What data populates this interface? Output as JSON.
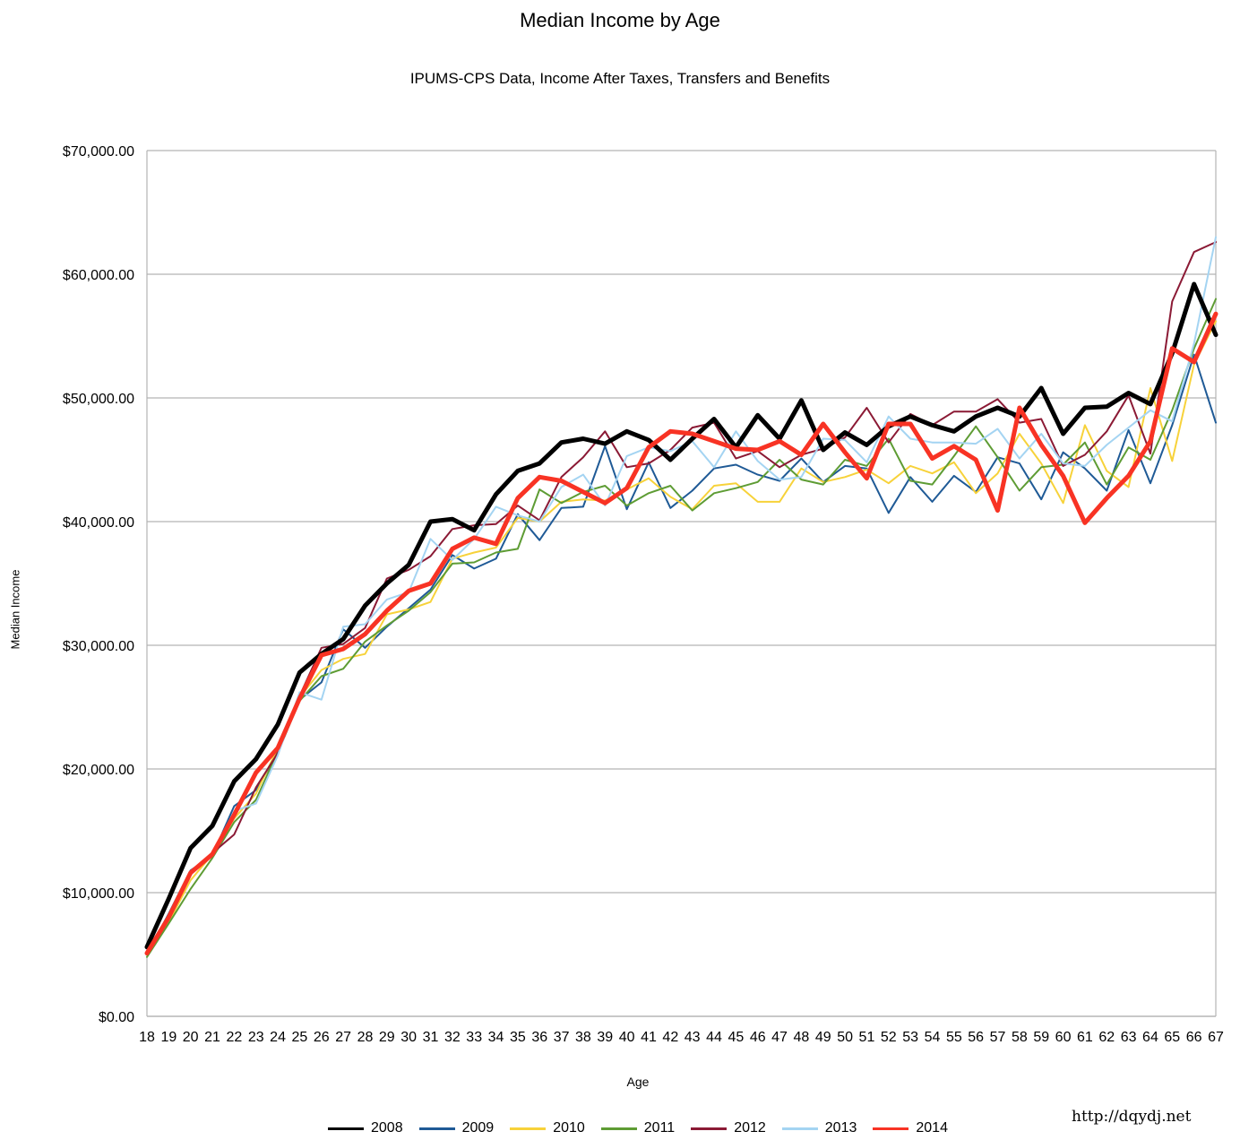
{
  "chart_data": {
    "type": "line",
    "title": "Median Income by Age",
    "subtitle": "IPUMS-CPS Data, Income After Taxes, Transfers and Benefits",
    "xlabel": "Age",
    "ylabel": "Median Income",
    "ylim": [
      0,
      70000
    ],
    "yticks": [
      0,
      10000,
      20000,
      30000,
      40000,
      50000,
      60000,
      70000
    ],
    "ytick_labels": [
      "$0.00",
      "$10,000.00",
      "$20,000.00",
      "$30,000.00",
      "$40,000.00",
      "$50,000.00",
      "$60,000.00",
      "$70,000.00"
    ],
    "grid": true,
    "legend_position": "bottom",
    "x": [
      18,
      19,
      20,
      21,
      22,
      23,
      24,
      25,
      26,
      27,
      28,
      29,
      30,
      31,
      32,
      33,
      34,
      35,
      36,
      37,
      38,
      39,
      40,
      41,
      42,
      43,
      44,
      45,
      46,
      47,
      48,
      49,
      50,
      51,
      52,
      53,
      54,
      55,
      56,
      57,
      58,
      59,
      60,
      61,
      62,
      63,
      64,
      65,
      66,
      67
    ],
    "series": [
      {
        "name": "2008",
        "color": "#000000",
        "width": 5,
        "values": [
          5600,
          9500,
          13600,
          15400,
          19000,
          20800,
          23600,
          27800,
          29300,
          30500,
          33200,
          35000,
          36500,
          40000,
          40200,
          39300,
          42200,
          44100,
          44700,
          46400,
          46700,
          46300,
          47300,
          46600,
          45000,
          46700,
          48300,
          46000,
          48600,
          46700,
          49800,
          45800,
          47200,
          46200,
          47700,
          48500,
          47800,
          47300,
          48500,
          49200,
          48500,
          50800,
          47100,
          49200,
          49300,
          50400,
          49500,
          53600,
          59200,
          55100
        ]
      },
      {
        "name": "2009",
        "color": "#1f5a96",
        "width": 2,
        "values": [
          5000,
          8300,
          11800,
          13000,
          17000,
          18300,
          21300,
          25600,
          27000,
          31300,
          29800,
          31500,
          33000,
          34500,
          37300,
          36200,
          37000,
          40600,
          38500,
          41100,
          41200,
          46100,
          41000,
          44800,
          41100,
          42500,
          44300,
          44600,
          43800,
          43300,
          45100,
          43200,
          44500,
          44300,
          40700,
          43600,
          41600,
          43700,
          42400,
          45200,
          44700,
          41800,
          45600,
          44300,
          42500,
          47400,
          43100,
          47800,
          53500,
          48000
        ]
      },
      {
        "name": "2010",
        "color": "#f7d23a",
        "width": 2,
        "values": [
          5000,
          7600,
          11000,
          13100,
          16000,
          18000,
          21700,
          25800,
          28000,
          28900,
          29300,
          32500,
          32900,
          33500,
          37000,
          37500,
          37900,
          40300,
          40000,
          41600,
          41800,
          41700,
          42600,
          43500,
          42000,
          41000,
          42900,
          43100,
          41600,
          41600,
          44300,
          43200,
          43600,
          44200,
          43100,
          44500,
          43900,
          44800,
          42300,
          43900,
          47100,
          44700,
          41500,
          47800,
          44100,
          42800,
          50800,
          44900,
          52700,
          56200
        ]
      },
      {
        "name": "2011",
        "color": "#5e9c34",
        "width": 2,
        "values": [
          4800,
          7500,
          10300,
          12800,
          15700,
          17500,
          21400,
          25500,
          27500,
          28100,
          30300,
          31600,
          32800,
          34300,
          36600,
          36700,
          37500,
          37800,
          42600,
          41500,
          42400,
          42900,
          41300,
          42300,
          42900,
          40900,
          42300,
          42700,
          43200,
          45000,
          43400,
          43000,
          45000,
          44500,
          46700,
          43300,
          43000,
          45300,
          47700,
          45200,
          42500,
          44400,
          44600,
          46400,
          43000,
          46000,
          45000,
          49000,
          54000,
          58000
        ]
      },
      {
        "name": "2012",
        "color": "#8b1a35",
        "width": 2,
        "values": [
          5100,
          7900,
          11600,
          13200,
          14700,
          18500,
          21300,
          25900,
          29800,
          30100,
          31400,
          35400,
          36100,
          37200,
          39400,
          39700,
          39800,
          41300,
          40100,
          43600,
          45200,
          47300,
          44400,
          44700,
          45800,
          47600,
          48000,
          45100,
          45700,
          44400,
          45400,
          45900,
          46800,
          49200,
          46400,
          48700,
          47800,
          48900,
          48900,
          49900,
          48000,
          48300,
          44500,
          45400,
          47300,
          50200,
          45500,
          57800,
          61800,
          62600
        ]
      },
      {
        "name": "2013",
        "color": "#a4d4f2",
        "width": 2,
        "values": [
          5000,
          8200,
          11600,
          13000,
          16600,
          17200,
          21100,
          26200,
          25600,
          31500,
          31700,
          33700,
          34300,
          38600,
          36900,
          38600,
          41200,
          40500,
          40000,
          42800,
          43800,
          41300,
          45300,
          46000,
          45700,
          46500,
          44400,
          47300,
          44900,
          43400,
          43600,
          46700,
          46600,
          44800,
          48500,
          46700,
          46400,
          46400,
          46300,
          47500,
          45100,
          47100,
          44700,
          44500,
          46200,
          47600,
          49000,
          48100,
          54400,
          63000
        ]
      },
      {
        "name": "2014",
        "color": "#f83324",
        "width": 5,
        "values": [
          5100,
          8000,
          11600,
          13100,
          16300,
          19700,
          21700,
          25700,
          29200,
          29700,
          30900,
          32800,
          34400,
          35000,
          37800,
          38700,
          38200,
          41900,
          43600,
          43300,
          42400,
          41500,
          42700,
          46000,
          47300,
          47100,
          46500,
          45900,
          45800,
          46500,
          45400,
          47900,
          45600,
          43500,
          47900,
          47900,
          45100,
          46100,
          45000,
          40900,
          49200,
          46200,
          43700,
          39900,
          41900,
          43700,
          46500,
          54000,
          52900,
          56800
        ]
      }
    ]
  },
  "footer": {
    "url": "http://dqydj.net"
  }
}
